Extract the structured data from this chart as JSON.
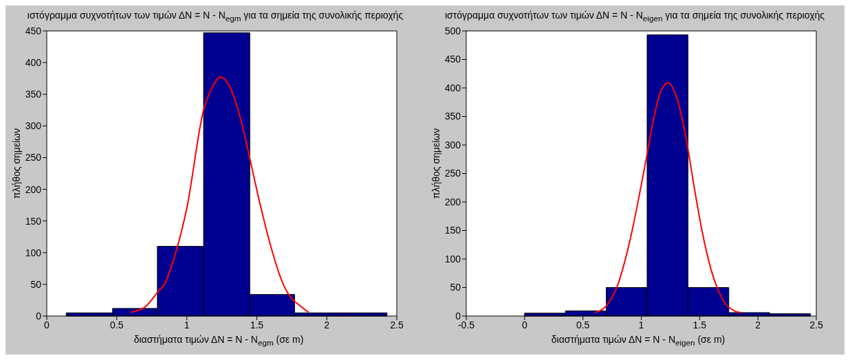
{
  "chart_data": [
    {
      "type": "histogram",
      "title": "ιστόγραμμα συχνοτήτων των τιμών ΔN = N - N$_{egm}$ για τα σημεία της συνολικής περιοχής",
      "xlabel": "διαστήματα τιμών ΔN = N - N$_{egm}$  (σε m)",
      "ylabel": "πλήθος σημείων",
      "bins": [
        0.14,
        0.47,
        0.79,
        1.12,
        1.45,
        1.77,
        2.1,
        2.43
      ],
      "values": [
        5,
        12,
        110,
        447,
        34,
        5,
        5
      ],
      "color": "#000090",
      "series": [
        {
          "type": "line",
          "color": "#ff0000",
          "x": [
            0.6,
            0.7,
            0.8,
            0.84,
            0.9,
            1.0,
            1.12,
            1.18,
            1.24,
            1.3,
            1.38,
            1.45,
            1.52,
            1.6,
            1.68,
            1.74,
            1.8,
            1.87
          ],
          "values": [
            6,
            14,
            40,
            50,
            85,
            170,
            325,
            360,
            377,
            365,
            315,
            249,
            180,
            110,
            55,
            30,
            18,
            6
          ]
        }
      ],
      "xlim": [
        0,
        2.5
      ],
      "xticks": [
        0,
        0.5,
        1,
        1.5,
        2,
        2.5
      ],
      "ylim": [
        0,
        450
      ],
      "yticks": [
        0,
        50,
        100,
        150,
        200,
        250,
        300,
        350,
        400,
        450
      ],
      "grid": false,
      "legend": false
    },
    {
      "type": "histogram",
      "title": "ιστόγραμμα συχνοτήτων των τιμών ΔN = N - N$_{eigen}$  για τα σημεία της συνολικής περιοχής",
      "xlabel": "διαστήματα τιμών ΔN = N - N$_{eigen}$  (σε m)",
      "ylabel": "πλήθος σημείων",
      "bins": [
        0,
        0.35,
        0.7,
        1.05,
        1.4,
        1.75,
        2.1,
        2.45
      ],
      "values": [
        5,
        9,
        50,
        493,
        50,
        6,
        4
      ],
      "color": "#000090",
      "series": [
        {
          "type": "line",
          "color": "#ff0000",
          "x": [
            0.6,
            0.7,
            0.79,
            0.9,
            1.0,
            1.04,
            1.1,
            1.16,
            1.23,
            1.3,
            1.39,
            1.45,
            1.52,
            1.6,
            1.65,
            1.72,
            1.8,
            1.86
          ],
          "values": [
            6,
            18,
            50,
            130,
            230,
            273,
            340,
            390,
            409,
            385,
            305,
            230,
            150,
            80,
            50,
            22,
            9,
            6
          ]
        }
      ],
      "xlim": [
        -0.5,
        2.5
      ],
      "xticks": [
        -0.5,
        0,
        0.5,
        1,
        1.5,
        2,
        2.5
      ],
      "ylim": [
        0,
        500
      ],
      "yticks": [
        0,
        50,
        100,
        150,
        200,
        250,
        300,
        350,
        400,
        450,
        500
      ],
      "grid": false,
      "legend": false
    }
  ]
}
